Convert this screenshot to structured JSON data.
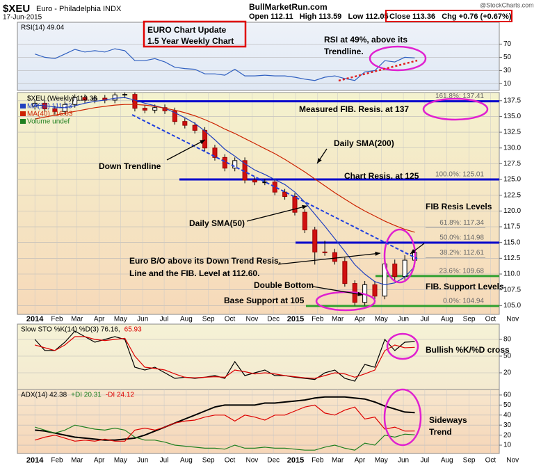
{
  "header": {
    "symbol": "$XEU",
    "name": "Euro - Philadelphia INDX",
    "date": "17-Jun-2015",
    "site": "BullMarketRun.com",
    "ohlc": "Open 112.11   High 113.59   Low 112.05",
    "close": "Close 113.36   Chg +0.76 (+0.67%)",
    "credit": "@StockCharts.com"
  },
  "chart_data": [
    {
      "type": "line",
      "legend": [
        {
          "text": "RSI(14) 49.04",
          "color": "#000000"
        }
      ],
      "annotations": [
        "EURO Chart Update",
        "1.5 Year Weekly Chart",
        "RSI at 49%, above its",
        "Trendline."
      ],
      "x": [
        0,
        2,
        4,
        6,
        8,
        10,
        12,
        14,
        16,
        18,
        20,
        22,
        24,
        26,
        28,
        30,
        32,
        34,
        36,
        38,
        40,
        42,
        44,
        46,
        48,
        50,
        52,
        54,
        56,
        58,
        60,
        62,
        64,
        66,
        68,
        70,
        72,
        74,
        76
      ],
      "xlim": [
        -3.5,
        92.9
      ],
      "ylim": [
        0,
        103
      ],
      "yticks": [
        10,
        30,
        50,
        70
      ],
      "series": [
        {
          "color": "#3060c0",
          "values": [
            55,
            50,
            48,
            55,
            62,
            58,
            60,
            58,
            63,
            60,
            45,
            45,
            48,
            43,
            35,
            33,
            32,
            25,
            25,
            23,
            32,
            22,
            22,
            23,
            22,
            22,
            20,
            17,
            15,
            20,
            22,
            18,
            15,
            28,
            30,
            45,
            43,
            50,
            49.04
          ]
        }
      ]
    },
    {
      "type": "candlestick",
      "legend": [
        {
          "text": "$XEU (Weekly) 113.36",
          "color": "#000000"
        },
        {
          "text": "MA(10) 111.23",
          "color": "#1f3fbf"
        },
        {
          "text": "MA(40) 116.63",
          "color": "#cc2200"
        },
        {
          "text": "Volume undef",
          "color": "#208020"
        }
      ],
      "annotations": [
        "Measured FIB. Resis. at 137",
        "Daily SMA(200)",
        "Down Trendline",
        "Chart Resis. at 125",
        "FIB Resis Levels",
        "Daily SMA(50)",
        "Euro B/O above its Down Trend Resis.",
        "Line and the FIB. Level at 112.60.",
        "Double Bottom",
        "FIB. Support Levels",
        "Base Support at 105"
      ],
      "levels": [
        {
          "value": 137.41,
          "label": "161.8%: 137.41",
          "color": "#0000cc"
        },
        {
          "value": 125.01,
          "label": "100.0%: 125.01",
          "color": "#0000cc"
        },
        {
          "value": 117.34,
          "label": "61.8%: 117.34",
          "color": null
        },
        {
          "value": 114.98,
          "label": "50.0%: 114.98",
          "color": "#0000cc"
        },
        {
          "value": 112.61,
          "label": "38.2%: 112.61",
          "color": null
        },
        {
          "value": 109.68,
          "label": "23.6%: 109.68",
          "color": "#30a030"
        },
        {
          "value": 104.94,
          "label": "0.0%: 104.94",
          "color": "#30a030"
        }
      ],
      "x": [
        0,
        2,
        4,
        6,
        8,
        10,
        12,
        14,
        16,
        18,
        20,
        22,
        24,
        26,
        28,
        30,
        32,
        34,
        36,
        38,
        40,
        42,
        44,
        46,
        48,
        50,
        52,
        54,
        56,
        58,
        60,
        62,
        64,
        66,
        68,
        70,
        72,
        74,
        76
      ],
      "open": [
        136.6,
        137.1,
        136.2,
        135.8,
        136.9,
        138.0,
        137.6,
        137.9,
        137.6,
        138.4,
        138.5,
        136.3,
        136.0,
        136.4,
        135.9,
        134.2,
        133.6,
        132.8,
        130.0,
        128.5,
        126.8,
        128.0,
        124.9,
        124.6,
        124.6,
        123.0,
        122.3,
        119.8,
        117.0,
        113.5,
        113.4,
        112.0,
        108.5,
        105.5,
        108.3,
        106.5,
        111.6,
        109.6,
        112.2
      ],
      "high": [
        137.6,
        137.6,
        136.7,
        137.4,
        138.5,
        138.5,
        138.4,
        138.4,
        138.9,
        139.0,
        139.0,
        136.8,
        136.9,
        136.9,
        136.4,
        134.7,
        134.1,
        133.3,
        130.5,
        129.0,
        128.5,
        128.5,
        125.4,
        125.1,
        125.1,
        123.5,
        122.8,
        120.3,
        117.5,
        115.3,
        114.0,
        112.6,
        109.0,
        108.9,
        108.9,
        112.8,
        112.3,
        113.0,
        113.59
      ],
      "low": [
        136.1,
        135.7,
        135.3,
        135.3,
        136.4,
        137.1,
        137.1,
        137.1,
        137.1,
        137.9,
        135.8,
        135.5,
        135.5,
        135.4,
        133.7,
        133.1,
        132.3,
        129.5,
        128.0,
        126.3,
        126.3,
        124.4,
        124.1,
        124.1,
        122.5,
        121.8,
        119.3,
        116.5,
        111.5,
        112.9,
        111.5,
        108.0,
        105.0,
        105.0,
        105.3,
        106.0,
        109.1,
        109.1,
        112.05
      ],
      "close": [
        137.1,
        136.2,
        135.8,
        136.9,
        138.0,
        137.6,
        137.9,
        137.6,
        138.4,
        138.5,
        136.3,
        136.0,
        136.4,
        135.9,
        134.2,
        133.6,
        132.8,
        130.0,
        128.5,
        126.8,
        128.0,
        124.9,
        124.6,
        124.6,
        123.0,
        122.3,
        119.8,
        117.0,
        113.5,
        113.4,
        112.0,
        108.5,
        105.5,
        108.3,
        106.5,
        111.6,
        109.6,
        112.2,
        113.36
      ],
      "series": [
        {
          "color": "#1f3fbf",
          "values": [
            136.8,
            136.7,
            136.5,
            136.4,
            136.7,
            137.1,
            137.4,
            137.6,
            137.9,
            138.0,
            137.6,
            137.1,
            136.7,
            136.3,
            135.6,
            134.8,
            133.9,
            132.7,
            131.3,
            129.8,
            128.7,
            127.5,
            126.5,
            125.8,
            125.0,
            124.2,
            123.0,
            121.4,
            119.5,
            117.6,
            115.6,
            113.6,
            111.5,
            110.0,
            108.8,
            108.3,
            108.6,
            109.5,
            111.23
          ]
        },
        {
          "color": "#cc2200",
          "values": [
            134.6,
            134.9,
            135.2,
            135.5,
            135.8,
            136.1,
            136.4,
            136.6,
            136.8,
            136.9,
            136.9,
            136.8,
            136.6,
            136.3,
            136.0,
            135.6,
            135.1,
            134.5,
            133.8,
            133.0,
            132.3,
            131.5,
            130.7,
            129.9,
            129.1,
            128.2,
            127.2,
            126.2,
            125.1,
            124.0,
            122.9,
            121.9,
            120.9,
            120.0,
            119.2,
            118.4,
            117.7,
            117.1,
            116.63
          ]
        }
      ],
      "xlim": [
        -3.5,
        92.9
      ],
      "ylim": [
        103.6,
        138.8
      ],
      "yticks": [
        {
          "value": 105,
          "label": "105.0"
        },
        107.5,
        {
          "value": 110,
          "label": "110.0"
        },
        112.5,
        {
          "value": 115,
          "label": "115.0"
        },
        117.5,
        {
          "value": 120,
          "label": "120.0"
        },
        122.5,
        {
          "value": 125,
          "label": "125.0"
        },
        127.5,
        {
          "value": 130,
          "label": "130.0"
        },
        132.5,
        {
          "value": 135,
          "label": "135.0"
        },
        137.5
      ],
      "xticks": [
        {
          "value": 0,
          "label": "2014"
        },
        {
          "value": 4.43,
          "label": "Feb"
        },
        {
          "value": 8.43,
          "label": "Mar"
        },
        {
          "value": 12.86,
          "label": "Apr"
        },
        {
          "value": 17.14,
          "label": "May"
        },
        {
          "value": 21.57,
          "label": "Jun"
        },
        {
          "value": 25.86,
          "label": "Jul"
        },
        {
          "value": 30.29,
          "label": "Aug"
        },
        {
          "value": 34.71,
          "label": "Sep"
        },
        {
          "value": 39,
          "label": "Oct"
        },
        {
          "value": 43.43,
          "label": "Nov"
        },
        {
          "value": 47.71,
          "label": "Dec"
        },
        {
          "value": 52.14,
          "label": "2015"
        },
        {
          "value": 56.57,
          "label": "Feb"
        },
        {
          "value": 60.57,
          "label": "Mar"
        },
        {
          "value": 65,
          "label": "Apr"
        },
        {
          "value": 69.29,
          "label": "May"
        },
        {
          "value": 73.71,
          "label": "Jun"
        },
        {
          "value": 78,
          "label": "Jul"
        },
        {
          "value": 82.43,
          "label": "Aug"
        },
        {
          "value": 86.86,
          "label": "Sep"
        },
        {
          "value": 91.14,
          "label": "Oct"
        },
        {
          "value": 95.57,
          "label": "Nov"
        }
      ]
    },
    {
      "type": "line",
      "legend": [
        {
          "text": "Slow STO %K(14) %D(3) 76.16,",
          "color": "#000000"
        },
        {
          "text": "65.93",
          "color": "#dd0000"
        }
      ],
      "annotations": [
        "Bullish %K/%D cross"
      ],
      "x": [
        0,
        2,
        4,
        6,
        8,
        10,
        12,
        14,
        16,
        18,
        20,
        22,
        24,
        26,
        28,
        30,
        32,
        34,
        36,
        38,
        40,
        42,
        44,
        46,
        48,
        50,
        52,
        54,
        56,
        58,
        60,
        62,
        64,
        66,
        68,
        70,
        72,
        74,
        76
      ],
      "xlim": [
        -3.5,
        92.9
      ],
      "ylim": [
        -10,
        107.5
      ],
      "yticks": [
        20,
        50,
        80
      ],
      "series": [
        {
          "color": "#000000",
          "values": [
            80,
            60,
            60,
            75,
            95,
            85,
            75,
            80,
            85,
            80,
            30,
            25,
            30,
            20,
            10,
            12,
            10,
            12,
            15,
            10,
            40,
            15,
            20,
            25,
            15,
            15,
            12,
            10,
            8,
            20,
            25,
            10,
            5,
            35,
            30,
            80,
            60,
            75,
            76.16
          ]
        },
        {
          "color": "#dd0000",
          "values": [
            70,
            65,
            60,
            70,
            85,
            85,
            80,
            78,
            80,
            82,
            50,
            30,
            28,
            25,
            18,
            12,
            11,
            12,
            13,
            12,
            25,
            22,
            18,
            20,
            18,
            15,
            13,
            11,
            10,
            15,
            20,
            18,
            12,
            18,
            25,
            60,
            70,
            65,
            65.93
          ]
        }
      ]
    },
    {
      "type": "line",
      "legend": [
        {
          "text": "ADX(14) 42.38",
          "color": "#000000"
        },
        {
          "text": "+DI 20.31",
          "color": "#208020"
        },
        {
          "text": "-DI 24.12",
          "color": "#dd0000"
        }
      ],
      "annotations": [
        "Sideways",
        "Trend"
      ],
      "x": [
        0,
        2,
        4,
        6,
        8,
        10,
        12,
        14,
        16,
        18,
        20,
        22,
        24,
        26,
        28,
        30,
        32,
        34,
        36,
        38,
        40,
        42,
        44,
        46,
        48,
        50,
        52,
        54,
        56,
        58,
        60,
        62,
        64,
        66,
        68,
        70,
        72,
        74,
        76
      ],
      "xlim": [
        -3.5,
        92.9
      ],
      "ylim": [
        1.7,
        65.5
      ],
      "yticks": [
        10,
        20,
        30,
        40,
        50,
        60
      ],
      "series": [
        {
          "color": "#000000",
          "values": [
            25,
            24,
            22,
            20,
            18,
            17,
            16,
            15,
            15,
            16,
            17,
            20,
            24,
            28,
            32,
            36,
            40,
            44,
            48,
            50,
            50,
            50,
            50,
            52,
            52,
            53,
            54,
            55,
            57,
            58,
            58,
            58,
            57,
            56,
            53,
            49,
            46,
            43,
            42.38
          ]
        },
        {
          "color": "#208020",
          "values": [
            28,
            25,
            22,
            25,
            30,
            28,
            26,
            25,
            27,
            25,
            18,
            15,
            15,
            13,
            10,
            9,
            8,
            7,
            7,
            6,
            10,
            7,
            7,
            8,
            7,
            7,
            6,
            5,
            5,
            8,
            10,
            7,
            5,
            12,
            10,
            20,
            18,
            21,
            20.31
          ]
        },
        {
          "color": "#dd0000",
          "values": [
            15,
            18,
            20,
            17,
            14,
            15,
            14,
            16,
            14,
            14,
            25,
            27,
            25,
            28,
            32,
            34,
            35,
            38,
            40,
            40,
            34,
            40,
            38,
            35,
            40,
            40,
            44,
            48,
            50,
            42,
            40,
            45,
            48,
            36,
            38,
            26,
            28,
            24,
            24.12
          ]
        }
      ],
      "xticks": [
        {
          "value": 0,
          "label": "2014"
        },
        {
          "value": 4.43,
          "label": "Feb"
        },
        {
          "value": 8.43,
          "label": "Mar"
        },
        {
          "value": 12.86,
          "label": "Apr"
        },
        {
          "value": 17.14,
          "label": "May"
        },
        {
          "value": 21.57,
          "label": "Jun"
        },
        {
          "value": 25.86,
          "label": "Jul"
        },
        {
          "value": 30.29,
          "label": "Aug"
        },
        {
          "value": 34.71,
          "label": "Sep"
        },
        {
          "value": 39,
          "label": "Oct"
        },
        {
          "value": 43.43,
          "label": "Nov"
        },
        {
          "value": 47.71,
          "label": "Dec"
        },
        {
          "value": 52.14,
          "label": "2015"
        },
        {
          "value": 56.57,
          "label": "Feb"
        },
        {
          "value": 60.57,
          "label": "Mar"
        },
        {
          "value": 65,
          "label": "Apr"
        },
        {
          "value": 69.29,
          "label": "May"
        },
        {
          "value": 73.71,
          "label": "Jun"
        },
        {
          "value": 78,
          "label": "Jul"
        },
        {
          "value": 82.43,
          "label": "Aug"
        },
        {
          "value": 86.86,
          "label": "Sep"
        },
        {
          "value": 91.14,
          "label": "Oct"
        },
        {
          "value": 95.57,
          "label": "Nov"
        }
      ]
    }
  ]
}
